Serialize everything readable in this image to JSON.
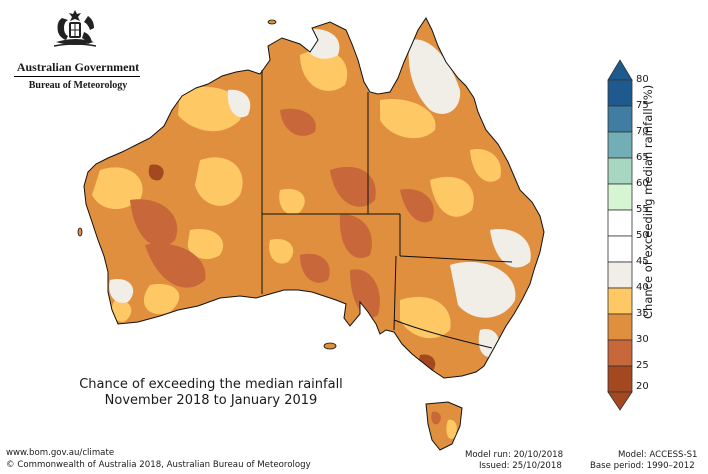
{
  "header": {
    "government": "Australian Government",
    "agency": "Bureau of Meteorology"
  },
  "map": {
    "caption_line1": "Chance of exceeding the median rainfall",
    "caption_line2": "November 2018 to January 2019"
  },
  "legend": {
    "title": "Chance of exceeding median rainfall (%)",
    "ticks": [
      "80",
      "75",
      "70",
      "65",
      "60",
      "55",
      "50",
      "45",
      "40",
      "35",
      "30",
      "25",
      "20"
    ],
    "colors": {
      "band_75_80": "#1f5a8f",
      "band_70_75": "#3f7ea2",
      "band_65_70": "#72aeb5",
      "band_60_65": "#a7d7c0",
      "band_55_60": "#d6f5d2",
      "band_50_55": "#ffffff",
      "band_45_50": "#ffffff",
      "band_40_45": "#f1ede7",
      "band_35_40": "#fec865",
      "band_30_35": "#df8f3e",
      "band_25_30": "#c8683a",
      "band_20_25": "#a4491f"
    }
  },
  "footer": {
    "website": "www.bom.gov.au/climate",
    "copyright": "© Commonwealth of Australia 2018, Australian Bureau of Meteorology",
    "model_run": "Model run: 20/10/2018",
    "issued": "Issued: 25/10/2018",
    "model": "Model: ACCESS-S1",
    "base_period": "Base period: 1990–2012"
  }
}
